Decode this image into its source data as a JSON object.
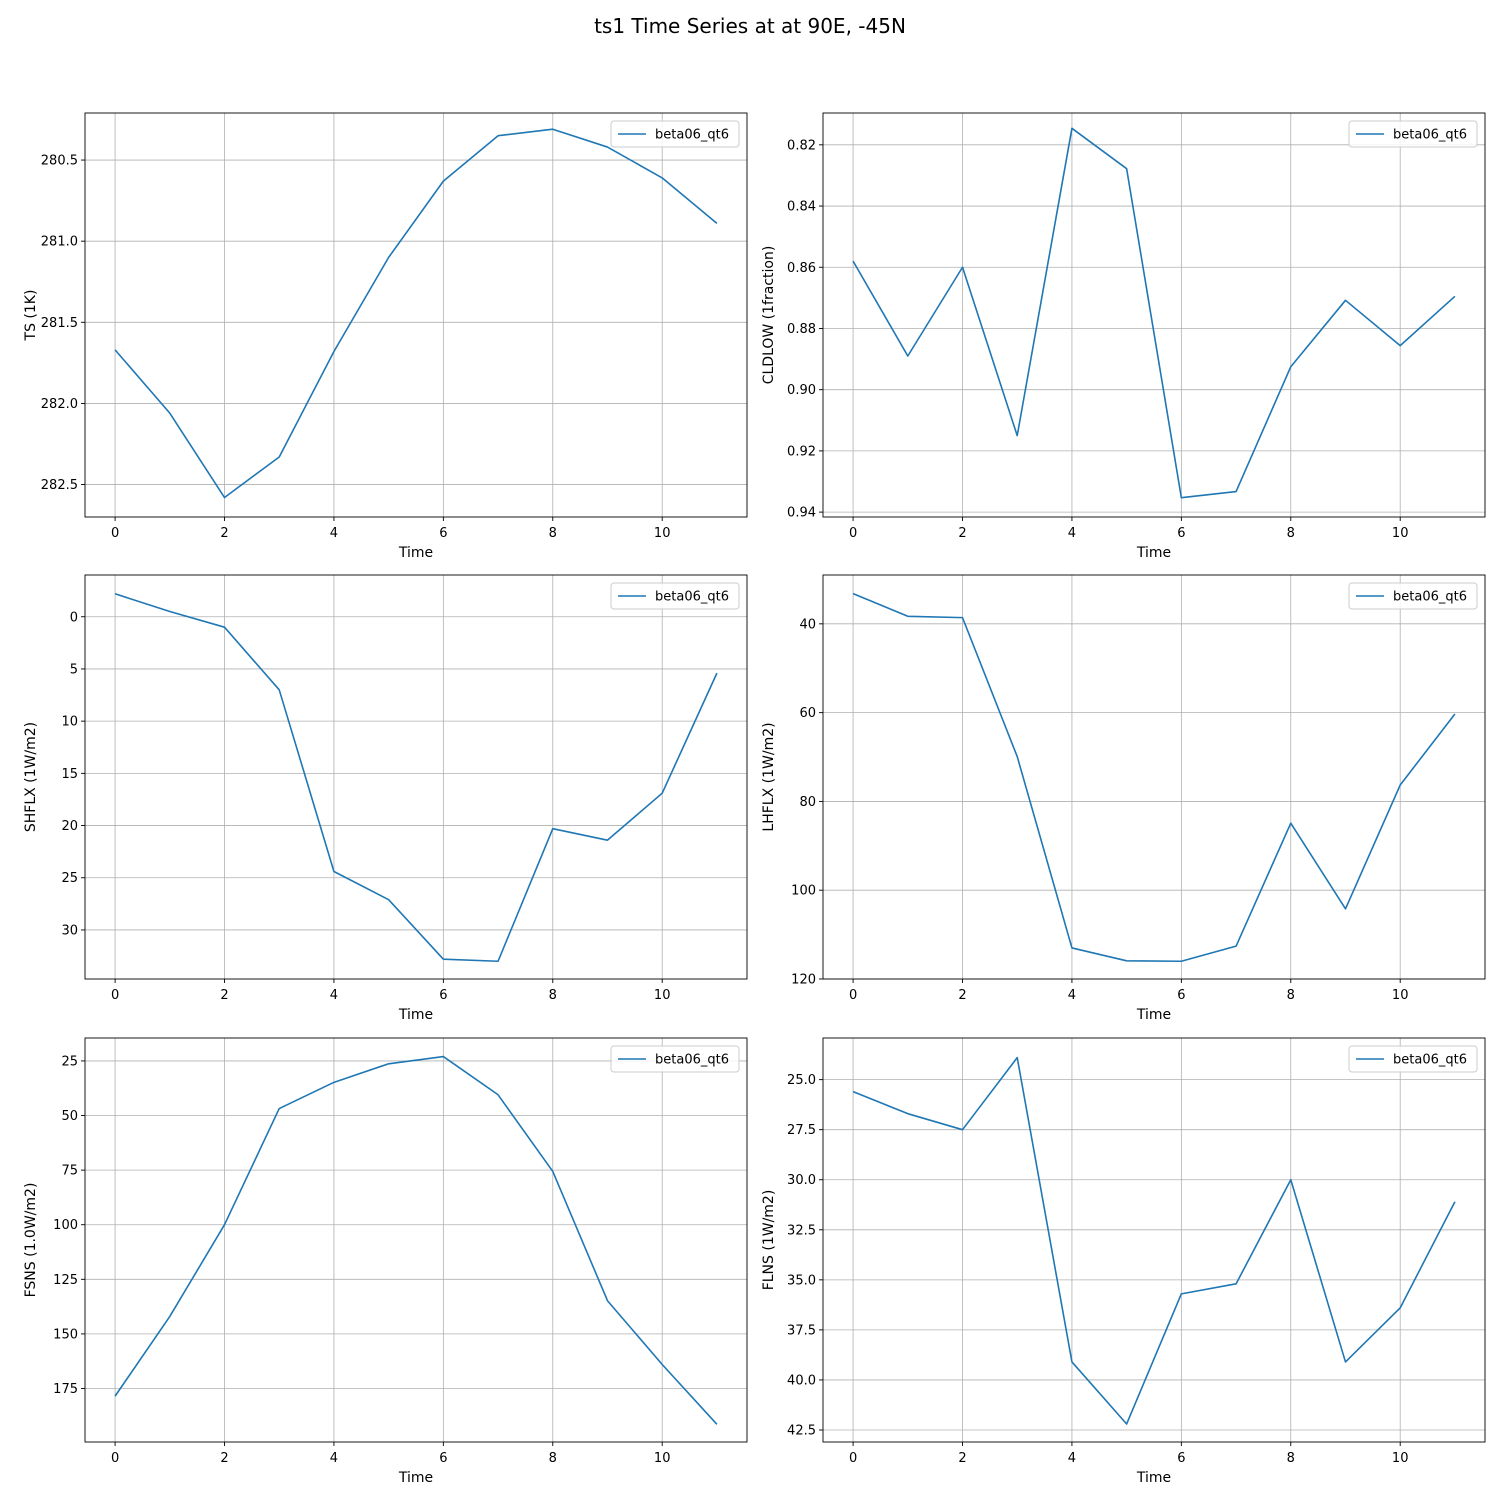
{
  "title": "ts1 Time Series at at 90E, -45N",
  "colors": {
    "series": "#1f77b4",
    "grid": "#b0b0b0",
    "axes": "#000000"
  },
  "chart_data": [
    {
      "type": "line",
      "xlabel": "Time",
      "ylabel": "TS (1K)",
      "xlim": [
        -0.55,
        11.55
      ],
      "ylim": [
        282.7,
        280.21
      ],
      "y_inverted": true,
      "grid": true,
      "legend_position": "top-right",
      "xticks": [
        0,
        2,
        4,
        6,
        8,
        10
      ],
      "xtick_labels": [
        "0",
        "2",
        "4",
        "6",
        "8",
        "10"
      ],
      "yticks": [
        280.5,
        281.0,
        281.5,
        282.0,
        282.5
      ],
      "ytick_labels": [
        "280.5",
        "281.0",
        "281.5",
        "282.0",
        "282.5"
      ],
      "series": [
        {
          "name": "beta06_qt6",
          "x": [
            0,
            1,
            2,
            3,
            4,
            5,
            6,
            7,
            8,
            9,
            10,
            11
          ],
          "values": [
            281.67,
            282.06,
            282.58,
            282.33,
            281.68,
            281.1,
            280.63,
            280.35,
            280.31,
            280.42,
            280.61,
            280.89
          ]
        }
      ]
    },
    {
      "type": "line",
      "xlabel": "Time",
      "ylabel": "CLDLOW (1fraction)",
      "xlim": [
        -0.55,
        11.55
      ],
      "ylim": [
        0.9416,
        0.8096
      ],
      "y_inverted": true,
      "grid": true,
      "legend_position": "top-right",
      "xticks": [
        0,
        2,
        4,
        6,
        8,
        10
      ],
      "xtick_labels": [
        "0",
        "2",
        "4",
        "6",
        "8",
        "10"
      ],
      "yticks": [
        0.82,
        0.84,
        0.86,
        0.88,
        0.9,
        0.92,
        0.94
      ],
      "ytick_labels": [
        "0.82",
        "0.84",
        "0.86",
        "0.88",
        "0.90",
        "0.92",
        "0.94"
      ],
      "series": [
        {
          "name": "beta06_qt6",
          "x": [
            0,
            1,
            2,
            3,
            4,
            5,
            6,
            7,
            8,
            9,
            10,
            11
          ],
          "values": [
            0.858,
            0.889,
            0.86,
            0.915,
            0.8146,
            0.8278,
            0.9353,
            0.9333,
            0.8925,
            0.8708,
            0.8856,
            0.8695
          ]
        }
      ]
    },
    {
      "type": "line",
      "xlabel": "Time",
      "ylabel": "SHFLX (1W/m2)",
      "xlim": [
        -0.55,
        11.55
      ],
      "ylim": [
        34.7,
        -4.0
      ],
      "y_inverted": true,
      "grid": true,
      "legend_position": "top-right",
      "xticks": [
        0,
        2,
        4,
        6,
        8,
        10
      ],
      "xtick_labels": [
        "0",
        "2",
        "4",
        "6",
        "8",
        "10"
      ],
      "yticks": [
        0,
        5,
        10,
        15,
        20,
        25,
        30
      ],
      "ytick_labels": [
        "0",
        "5",
        "10",
        "15",
        "20",
        "25",
        "30"
      ],
      "series": [
        {
          "name": "beta06_qt6",
          "x": [
            0,
            1,
            2,
            3,
            4,
            5,
            6,
            7,
            8,
            9,
            10,
            11
          ],
          "values": [
            -2.2,
            -0.5,
            1.0,
            7.0,
            24.4,
            27.1,
            32.8,
            33.0,
            20.3,
            21.4,
            16.9,
            5.4
          ]
        }
      ]
    },
    {
      "type": "line",
      "xlabel": "Time",
      "ylabel": "LHFLX (1W/m2)",
      "xlim": [
        -0.55,
        11.55
      ],
      "ylim": [
        120.0,
        29.0
      ],
      "y_inverted": true,
      "grid": true,
      "legend_position": "top-right",
      "xticks": [
        0,
        2,
        4,
        6,
        8,
        10
      ],
      "xtick_labels": [
        "0",
        "2",
        "4",
        "6",
        "8",
        "10"
      ],
      "yticks": [
        40,
        60,
        80,
        100,
        120
      ],
      "ytick_labels": [
        "40",
        "60",
        "80",
        "100",
        "120"
      ],
      "series": [
        {
          "name": "beta06_qt6",
          "x": [
            0,
            1,
            2,
            3,
            4,
            5,
            6,
            7,
            8,
            9,
            10,
            11
          ],
          "values": [
            33.2,
            38.3,
            38.6,
            69.9,
            113.0,
            115.9,
            116.0,
            112.6,
            84.9,
            104.2,
            76.3,
            60.3
          ]
        }
      ]
    },
    {
      "type": "line",
      "xlabel": "Time",
      "ylabel": "FSNS (1.0W/m2)",
      "xlim": [
        -0.55,
        11.55
      ],
      "ylim": [
        199.5,
        14.5
      ],
      "y_inverted": true,
      "grid": true,
      "legend_position": "top-right",
      "xticks": [
        0,
        2,
        4,
        6,
        8,
        10
      ],
      "xtick_labels": [
        "0",
        "2",
        "4",
        "6",
        "8",
        "10"
      ],
      "yticks": [
        25,
        50,
        75,
        100,
        125,
        150,
        175
      ],
      "ytick_labels": [
        "25",
        "50",
        "75",
        "100",
        "125",
        "150",
        "175"
      ],
      "series": [
        {
          "name": "beta06_qt6",
          "x": [
            0,
            1,
            2,
            3,
            4,
            5,
            6,
            7,
            8,
            9,
            10,
            11
          ],
          "values": [
            178.5,
            142.0,
            100.0,
            46.8,
            34.8,
            26.3,
            23.0,
            40.5,
            75.6,
            134.8,
            164.0,
            191.4
          ]
        }
      ]
    },
    {
      "type": "line",
      "xlabel": "Time",
      "ylabel": "FLNS (1W/m2)",
      "xlim": [
        -0.55,
        11.55
      ],
      "ylim": [
        43.1,
        22.92
      ],
      "y_inverted": true,
      "grid": true,
      "legend_position": "top-right",
      "xticks": [
        0,
        2,
        4,
        6,
        8,
        10
      ],
      "xtick_labels": [
        "0",
        "2",
        "4",
        "6",
        "8",
        "10"
      ],
      "yticks": [
        25.0,
        27.5,
        30.0,
        32.5,
        35.0,
        37.5,
        40.0,
        42.5
      ],
      "ytick_labels": [
        "25.0",
        "27.5",
        "30.0",
        "32.5",
        "35.0",
        "37.5",
        "40.0",
        "42.5"
      ],
      "series": [
        {
          "name": "beta06_qt6",
          "x": [
            0,
            1,
            2,
            3,
            4,
            5,
            6,
            7,
            8,
            9,
            10,
            11
          ],
          "values": [
            25.6,
            26.7,
            27.5,
            23.9,
            39.1,
            42.2,
            35.7,
            35.2,
            30.0,
            39.1,
            36.4,
            31.1
          ]
        }
      ]
    }
  ]
}
